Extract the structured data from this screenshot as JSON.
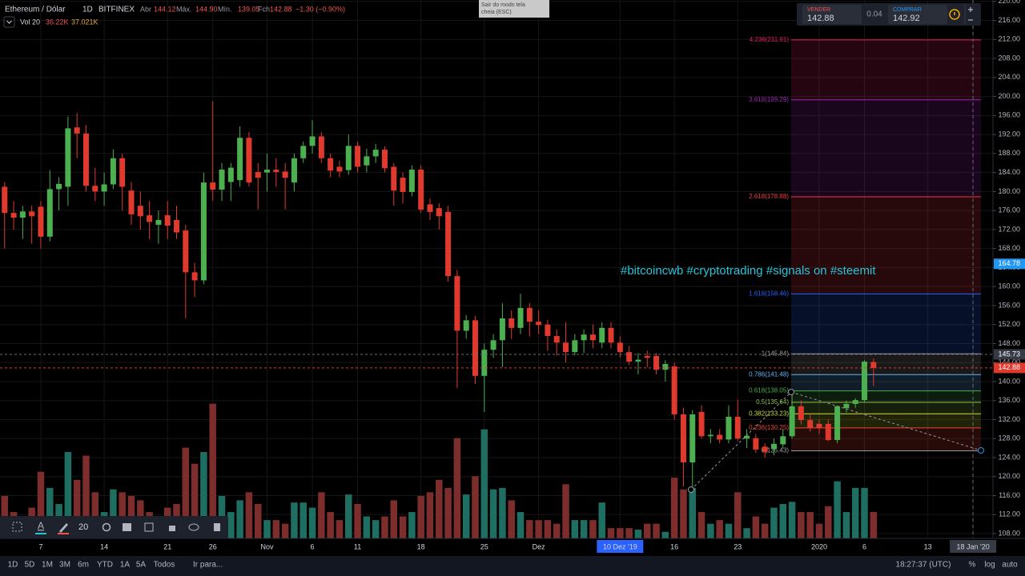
{
  "header": {
    "symbol": "Ethereum / Dólar",
    "interval": "1D",
    "exchange": "BITFINEX",
    "open_label": "Abr",
    "open": "144.12",
    "high_label": "Máx.",
    "high": "144.90",
    "low_label": "Mín.",
    "low": "139.05",
    "close_label": "Fch",
    "close": "142.88",
    "change": "−1.30 (−0.90%)",
    "volume_label": "Vol 20",
    "volume": "36.22K",
    "volume_ma": "37.021K"
  },
  "tooltip": [
    "Sair do modo tela",
    "cheia (ESC)"
  ],
  "trade_widget": {
    "sell_label": "VENDER",
    "sell": "142.88",
    "spread": "0.04",
    "buy_label": "COMPRAR",
    "buy": "142.92"
  },
  "annotation": "#bitcoincwb #cryptotrading #signals on #steemit",
  "toolbar": {
    "line_width": "20"
  },
  "bottom_bar": {
    "ranges": [
      "1D",
      "5D",
      "1M",
      "3M",
      "6m",
      "YTD",
      "1A",
      "5A",
      "Todos"
    ],
    "goto": "Ir para...",
    "clock": "18:27:37 (UTC)",
    "percent": "%",
    "log": "log",
    "auto": "auto"
  },
  "chart_data": {
    "type": "candlestick",
    "open": [
      181,
      175.5,
      174.5,
      175.8,
      176.8,
      170.5,
      180.5,
      181,
      193.5,
      192.2,
      181.2,
      180,
      181.5,
      187,
      180.2,
      177,
      175,
      173,
      175,
      174,
      171.8,
      163,
      161.3,
      181.9,
      180.4,
      182,
      182.4,
      191.3,
      184.1,
      184,
      184.6,
      184.2,
      181.9,
      187,
      189.6,
      191.6,
      187,
      185.2,
      184.5,
      189.6,
      185.5,
      187.4,
      188.8,
      185.2,
      182.9,
      179.9,
      184.6,
      177.3,
      176.5,
      175.7,
      162.2,
      150.7,
      152.9,
      141.2,
      146.7,
      148.7,
      153.3,
      151.3,
      155.5,
      152.6,
      152,
      149.6,
      148.2,
      146.2,
      148.7,
      149.9,
      148.2,
      151.3,
      148.2,
      146.2,
      144.2,
      145.4,
      145.4,
      142.5,
      143.2,
      133.1,
      123,
      133.6,
      128.5,
      128.8,
      127.8,
      132.6,
      128,
      128.1,
      126.3,
      125.8,
      126.8,
      128.5,
      134.8,
      131.9,
      131.1,
      131.1,
      127.7,
      134.4,
      135.3,
      136.1,
      144.12
    ],
    "high": [
      182,
      178,
      177,
      177,
      178,
      184.5,
      183,
      195.8,
      196.5,
      194,
      185,
      184,
      188.9,
      188,
      182,
      180,
      178,
      176,
      178,
      177,
      173,
      165,
      184,
      199,
      186,
      186,
      193.7,
      192.5,
      186,
      188,
      187,
      186,
      188,
      190.5,
      195,
      192.5,
      188,
      186.5,
      192,
      190.5,
      189,
      190,
      189.5,
      186,
      184,
      185.5,
      185.5,
      178.5,
      177.5,
      177,
      163.5,
      154,
      153.8,
      148,
      150,
      156.5,
      155,
      158.5,
      156.5,
      155,
      153,
      151,
      152.5,
      150,
      151,
      152,
      152.5,
      152.5,
      149.5,
      147.5,
      146,
      146.5,
      146,
      144.5,
      144,
      134.5,
      134,
      135,
      130,
      130,
      135,
      136.2,
      130,
      129,
      127,
      128,
      130,
      138,
      136,
      133,
      132,
      132,
      135,
      136,
      136.5,
      144.5,
      144.9
    ],
    "low": [
      168,
      172,
      170,
      169,
      168,
      169.5,
      176,
      177,
      187,
      180,
      178,
      177,
      180.5,
      176,
      173,
      172,
      170,
      169,
      170,
      170,
      153.3,
      157.8,
      160.5,
      178,
      178,
      178,
      181,
      181,
      176.2,
      180,
      181,
      176.2,
      180,
      186,
      188,
      186,
      183,
      183,
      183.5,
      184,
      184,
      186,
      184,
      177,
      177.5,
      179,
      175.5,
      174,
      172,
      161,
      138.6,
      149,
      139.5,
      133.6,
      145,
      143,
      149,
      150,
      149.5,
      150,
      146.5,
      145.5,
      144,
      145.5,
      146,
      147,
      147,
      147,
      145,
      143.5,
      141.5,
      143,
      141.5,
      140,
      132,
      117.9,
      117.5,
      128,
      127,
      127,
      127,
      127.5,
      126,
      125,
      124,
      124.5,
      126,
      128,
      131,
      129.5,
      129,
      127.5,
      127,
      133.5,
      134.5,
      135.8,
      139.05
    ],
    "close": [
      175.5,
      174.5,
      175.8,
      174.8,
      170.5,
      180.5,
      181.6,
      193.3,
      192.2,
      181.2,
      180,
      181.5,
      187,
      181,
      175.2,
      174.8,
      173.6,
      174,
      172.8,
      171.4,
      163,
      161.3,
      181.9,
      180.4,
      184.6,
      185,
      191.3,
      181.9,
      182.9,
      184.6,
      184.1,
      182.9,
      187,
      189.6,
      191.6,
      187,
      184.4,
      184.2,
      189.6,
      185.2,
      187.4,
      188.8,
      184.9,
      180.2,
      179.9,
      184.6,
      176.2,
      175.7,
      174.8,
      162.2,
      150.7,
      152.9,
      141.2,
      146.7,
      148.7,
      153.3,
      151.3,
      155.5,
      152.6,
      151.9,
      149.6,
      148.2,
      146.2,
      148.7,
      149.9,
      148.7,
      151.3,
      148.2,
      146.2,
      144.2,
      144.6,
      145,
      142.5,
      143.7,
      133.1,
      123,
      133.1,
      128.5,
      128.8,
      127.8,
      132.6,
      128,
      128.6,
      125.7,
      125.2,
      126.9,
      128.5,
      134.8,
      131.9,
      130.2,
      130.2,
      127.7,
      134.8,
      135.3,
      136.1,
      144.2,
      142.88
    ],
    "volume": [
      58,
      36,
      30,
      42,
      91,
      69,
      47,
      118,
      80,
      113,
      63,
      36,
      67,
      63,
      58,
      52,
      36,
      30,
      42,
      47,
      124,
      102,
      118,
      184,
      58,
      36,
      52,
      63,
      47,
      25,
      25,
      20,
      49,
      49,
      42,
      63,
      36,
      25,
      60,
      47,
      30,
      25,
      30,
      52,
      30,
      36,
      58,
      63,
      80,
      69,
      137,
      60,
      85,
      149,
      67,
      69,
      52,
      36,
      25,
      25,
      25,
      20,
      74,
      25,
      25,
      25,
      49,
      14,
      14,
      14,
      12,
      20,
      20,
      9,
      83,
      67,
      69,
      36,
      20,
      25,
      20,
      63,
      14,
      30,
      20,
      42,
      47,
      50,
      36,
      36,
      20,
      44,
      78,
      36,
      69,
      69,
      36.22
    ],
    "volume_lim": [
      0,
      200
    ],
    "up_color": "#4caf50",
    "down_color": "#e0392e",
    "volume_up_color": "#1f6e62",
    "volume_down_color": "#7e2d2d",
    "xlim": [
      -0.51,
      109.2
    ],
    "xticks": [
      {
        "value": 4,
        "label": "7"
      },
      {
        "value": 11,
        "label": "14"
      },
      {
        "value": 18,
        "label": "21"
      },
      {
        "value": 23,
        "label": "26"
      },
      {
        "value": 29,
        "label": "Nov"
      },
      {
        "value": 34,
        "label": "6"
      },
      {
        "value": 39,
        "label": "11"
      },
      {
        "value": 46,
        "label": "18"
      },
      {
        "value": 53,
        "label": "25"
      },
      {
        "value": 59,
        "label": "Dez"
      },
      {
        "value": 68,
        "label": "10 Dez '19"
      },
      {
        "value": 74,
        "label": "16"
      },
      {
        "value": 81,
        "label": "23"
      },
      {
        "value": 90,
        "label": "2020"
      },
      {
        "value": 95,
        "label": "6"
      },
      {
        "value": 102,
        "label": "13"
      },
      {
        "value": 107,
        "label": "18 Jan '20"
      }
    ],
    "ylim": [
      107,
      220.3
    ],
    "yticks": [
      {
        "value": 108,
        "label": "108.00"
      },
      {
        "value": 112,
        "label": "112.00"
      },
      {
        "value": 116,
        "label": "116.00"
      },
      {
        "value": 120,
        "label": "120.00"
      },
      {
        "value": 124,
        "label": "124.00"
      },
      {
        "value": 128,
        "label": "128.00"
      },
      {
        "value": 132,
        "label": "132.00"
      },
      {
        "value": 136,
        "label": "136.00"
      },
      {
        "value": 140,
        "label": "140.00"
      },
      {
        "value": 144,
        "label": "144.00"
      },
      {
        "value": 148,
        "label": "148.00"
      },
      {
        "value": 152,
        "label": "152.00"
      },
      {
        "value": 156,
        "label": "156.00"
      },
      {
        "value": 160,
        "label": "160.00"
      },
      {
        "value": 164,
        "label": "164.00"
      },
      {
        "value": 168,
        "label": "168.00"
      },
      {
        "value": 172,
        "label": "172.00"
      },
      {
        "value": 176,
        "label": "176.00"
      },
      {
        "value": 180,
        "label": "180.00"
      },
      {
        "value": 184,
        "label": "184.00"
      },
      {
        "value": 188,
        "label": "188.00"
      },
      {
        "value": 192,
        "label": "192.00"
      },
      {
        "value": 196,
        "label": "196.00"
      },
      {
        "value": 200,
        "label": "200.00"
      },
      {
        "value": 204,
        "label": "204.00"
      },
      {
        "value": 208,
        "label": "208.00"
      },
      {
        "value": 212,
        "label": "212.00"
      },
      {
        "value": 216,
        "label": "216.00"
      },
      {
        "value": 220,
        "label": "220.00"
      }
    ],
    "grid": true,
    "fib_levels": [
      {
        "value": 211.91,
        "label": "4.236(211.91)",
        "color": "#e91e63"
      },
      {
        "value": 199.29,
        "label": "3.618(199.29)",
        "color": "#9c27b0"
      },
      {
        "value": 178.88,
        "label": "2.618(178.88)",
        "color": "#f23645"
      },
      {
        "value": 158.46,
        "label": "1.618(158.46)",
        "color": "#2962ff"
      },
      {
        "value": 145.84,
        "label": "1(145.84)",
        "color": "#9e9e9e"
      },
      {
        "value": 141.48,
        "label": "0.786(141.48)",
        "color": "#64b5f6"
      },
      {
        "value": 138.05,
        "label": "0.618(138.05)",
        "color": "#4caf50"
      },
      {
        "value": 135.64,
        "label": "0.5(135.64)",
        "color": "#8bc34a"
      },
      {
        "value": 133.23,
        "label": "0.382(133.23)",
        "color": "#cddc39"
      },
      {
        "value": 130.25,
        "label": "0.236(130.25)",
        "color": "#f44336"
      },
      {
        "value": 125.43,
        "label": "0(125.43)",
        "color": "#9e9e9e"
      }
    ],
    "price_lines": [
      {
        "value": 164.78,
        "color": "#2196f3",
        "line": false
      },
      {
        "value": 145.73,
        "color": "#363a45",
        "line": true
      },
      {
        "value": 142.88,
        "color": "#e0392e",
        "line": true
      }
    ]
  }
}
